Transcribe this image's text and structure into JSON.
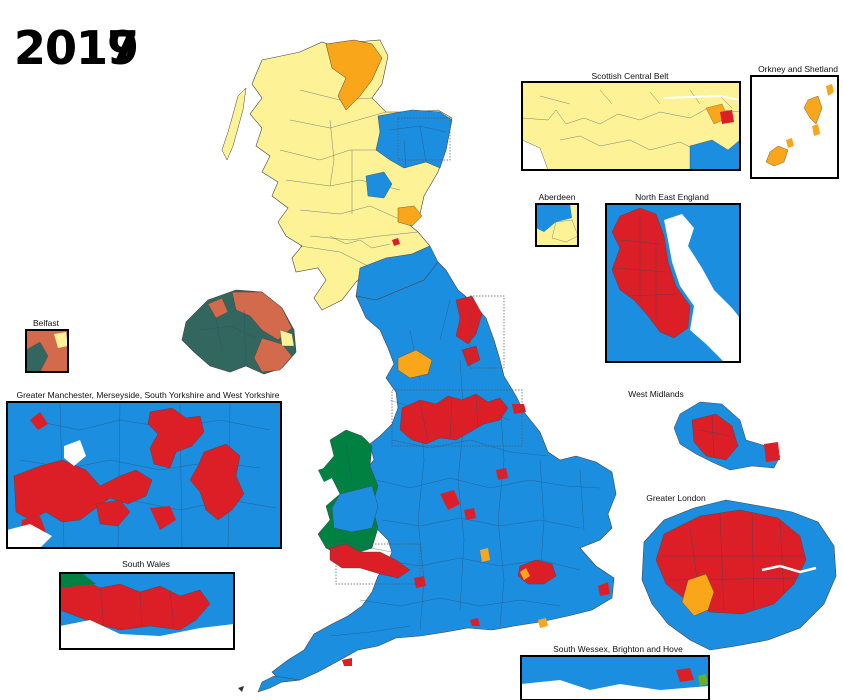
{
  "title": {
    "year_back": "2019",
    "year_front": "2017"
  },
  "insets": {
    "scottish_central_belt": "Scottish Central Belt",
    "orkney_shetland": "Orkney and Shetland",
    "aberdeen": "Aberdeen",
    "north_east_england": "North East England",
    "belfast": "Belfast",
    "greater_manchester": "Greater Manchester, Merseyside, South Yorkshire and West Yorkshire",
    "west_midlands": "West Midlands",
    "greater_london": "Greater London",
    "south_wales": "South Wales",
    "south_wessex": "South Wessex, Brighton and Hove"
  },
  "party_colors": {
    "conservative": "#1c8ee0",
    "labour": "#dc1e27",
    "snp": "#fdf296",
    "liberal_democrat": "#faa61a",
    "plaid_cymru": "#008142",
    "dup": "#d46a4c",
    "sinn_fein": "#326760",
    "green": "#6ab023"
  }
}
